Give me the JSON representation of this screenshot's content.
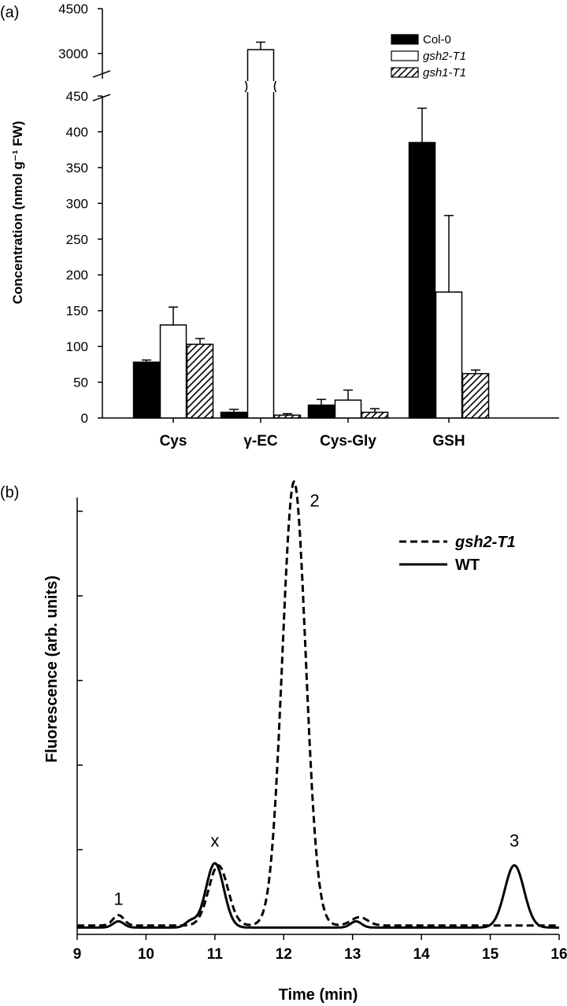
{
  "panel_a": {
    "label": "(a)",
    "ylabel": "Concentration (nmol g⁻¹ FW)",
    "legend": [
      {
        "name": "Col-0",
        "style": "solid",
        "italic": false
      },
      {
        "name": "gsh2-T1",
        "style": "open",
        "italic": true
      },
      {
        "name": "gsh1-T1",
        "style": "hatch",
        "italic": true
      }
    ]
  },
  "panel_b": {
    "label": "(b)",
    "ylabel": "Fluorescence (arb. units)",
    "xlabel": "Time (min)",
    "legend": [
      {
        "name": "gsh2-T1",
        "style": "dashed"
      },
      {
        "name": "WT",
        "style": "solid"
      }
    ],
    "peak_labels": [
      "1",
      "x",
      "2",
      "3"
    ]
  },
  "chart_data": [
    {
      "type": "bar",
      "title": "",
      "ylabel": "Concentration (nmol g⁻¹ FW)",
      "xlabel": "",
      "categories": [
        "Cys",
        "γ-EC",
        "Cys-Gly",
        "GSH"
      ],
      "axis_break": {
        "lower_range": [
          0,
          450
        ],
        "upper_range": [
          3000,
          4500
        ]
      },
      "yticks_lower": [
        0,
        50,
        100,
        150,
        200,
        250,
        300,
        350,
        400,
        450
      ],
      "yticks_upper": [
        3000,
        4500
      ],
      "series": [
        {
          "name": "Col-0",
          "values": [
            78,
            8,
            18,
            385
          ],
          "errors": [
            3,
            4,
            8,
            48
          ]
        },
        {
          "name": "gsh2-T1",
          "values": [
            130,
            3130,
            25,
            176
          ],
          "errors": [
            25,
            250,
            14,
            107
          ]
        },
        {
          "name": "gsh1-T1",
          "values": [
            103,
            4,
            8,
            62
          ],
          "errors": [
            8,
            2,
            5,
            5
          ]
        }
      ],
      "legend_position": "top-right",
      "grid": false
    },
    {
      "type": "line",
      "title": "",
      "xlabel": "Time (min)",
      "ylabel": "Fluorescence (arb. units)",
      "xlim": [
        9,
        16
      ],
      "xticks": [
        9,
        10,
        11,
        12,
        13,
        14,
        15,
        16
      ],
      "ylim": [
        0,
        1.08
      ],
      "y_tick_count": 5,
      "series": [
        {
          "name": "gsh2-T1",
          "line": "dashed",
          "baseline": 0.01,
          "peaks": [
            {
              "x": 9.6,
              "height": 0.025,
              "width": 0.08
            },
            {
              "x": 11.05,
              "height": 0.145,
              "width": 0.14
            },
            {
              "x": 12.15,
              "height": 1.07,
              "width": 0.17
            },
            {
              "x": 13.1,
              "height": 0.02,
              "width": 0.12
            }
          ]
        },
        {
          "name": "WT",
          "line": "solid",
          "baseline": 0.005,
          "peaks": [
            {
              "x": 9.6,
              "height": 0.015,
              "width": 0.08
            },
            {
              "x": 10.65,
              "height": 0.015,
              "width": 0.08
            },
            {
              "x": 11.0,
              "height": 0.155,
              "width": 0.13
            },
            {
              "x": 13.05,
              "height": 0.015,
              "width": 0.08
            },
            {
              "x": 15.35,
              "height": 0.15,
              "width": 0.14
            }
          ]
        }
      ],
      "annotations": [
        {
          "text": "1",
          "x": 9.6,
          "y": 0.06
        },
        {
          "text": "x",
          "x": 11.0,
          "y": 0.2
        },
        {
          "text": "2",
          "x": 12.45,
          "y": 1.02
        },
        {
          "text": "3",
          "x": 15.35,
          "y": 0.2
        }
      ],
      "legend_position": "top-right",
      "grid": false
    }
  ]
}
